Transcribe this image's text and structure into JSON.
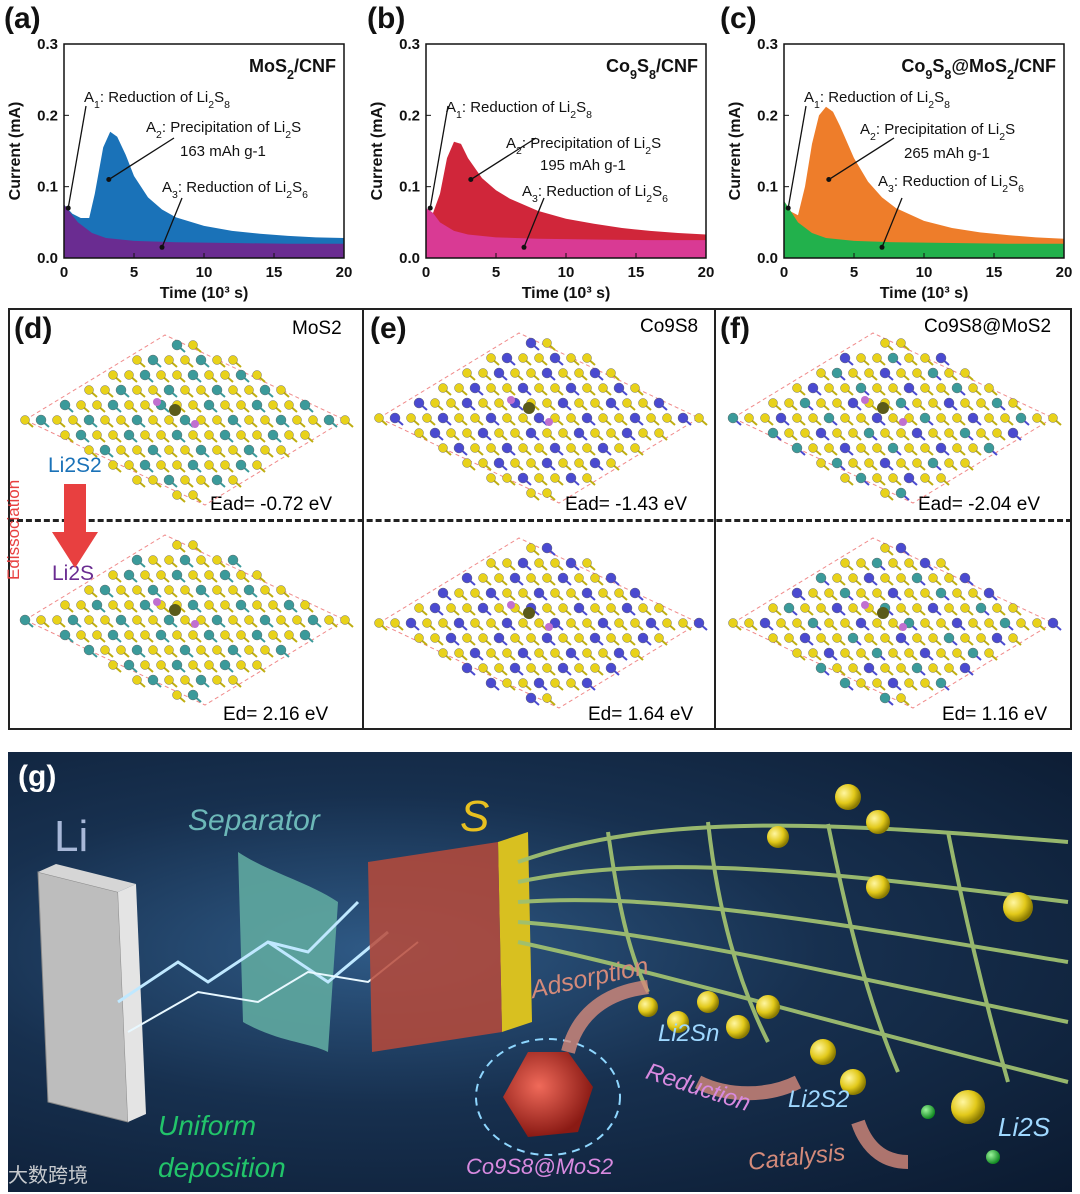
{
  "panel_labels": {
    "a": "(a)",
    "b": "(b)",
    "c": "(c)",
    "d": "(d)",
    "e": "(e)",
    "f": "(f)",
    "g": "(g)"
  },
  "chart_data": [
    {
      "type": "area",
      "panel": "(a)",
      "title": "MoS2/CNF",
      "xlabel": "Time (10³ s)",
      "ylabel": "Current (mA)",
      "xlim": [
        0,
        20
      ],
      "ylim": [
        0,
        0.3
      ],
      "xticks": [
        0,
        5,
        10,
        15,
        20
      ],
      "yticks": [
        0.0,
        0.1,
        0.2,
        0.3
      ],
      "series": [
        {
          "x": [
            0,
            0.6,
            1.2,
            1.8,
            2.2,
            2.8,
            3.3,
            3.8,
            4.4,
            5,
            6,
            7,
            8,
            10,
            12,
            14,
            16,
            18,
            20
          ],
          "y": [
            0.075,
            0.062,
            0.056,
            0.056,
            0.09,
            0.155,
            0.177,
            0.17,
            0.145,
            0.115,
            0.085,
            0.068,
            0.057,
            0.045,
            0.038,
            0.034,
            0.031,
            0.029,
            0.028
          ],
          "color": "#1a72b8"
        },
        {
          "x": [
            0,
            0.5,
            1,
            2,
            3,
            5,
            8,
            12,
            16,
            20
          ],
          "y": [
            0.075,
            0.062,
            0.05,
            0.035,
            0.028,
            0.024,
            0.022,
            0.021,
            0.02,
            0.02
          ],
          "color": "#6a2c91"
        }
      ],
      "annotations": [
        {
          "label": "A1: Reduction of Li2S8"
        },
        {
          "label": "A2: Precipitation of Li2S"
        },
        {
          "label": "163 mAh g-1"
        },
        {
          "label": "A3: Reduction of Li2S6"
        }
      ],
      "colors": {
        "main": "#1a72b8",
        "base": "#6a2c91"
      }
    },
    {
      "type": "area",
      "panel": "(b)",
      "title": "Co9S8/CNF",
      "xlabel": "Time (10³ s)",
      "ylabel": "Current (mA)",
      "xlim": [
        0,
        20
      ],
      "ylim": [
        0,
        0.3
      ],
      "xticks": [
        0,
        5,
        10,
        15,
        20
      ],
      "yticks": [
        0.0,
        0.1,
        0.2,
        0.3
      ],
      "series": [
        {
          "x": [
            0,
            0.5,
            1,
            1.5,
            2,
            2.5,
            3,
            4,
            5,
            6,
            8,
            10,
            12,
            14,
            16,
            18,
            20
          ],
          "y": [
            0.07,
            0.063,
            0.09,
            0.14,
            0.163,
            0.16,
            0.14,
            0.112,
            0.095,
            0.083,
            0.066,
            0.055,
            0.048,
            0.042,
            0.038,
            0.035,
            0.033
          ],
          "color": "#d0263a"
        },
        {
          "x": [
            0,
            0.5,
            1,
            2,
            3,
            5,
            8,
            12,
            16,
            20
          ],
          "y": [
            0.07,
            0.063,
            0.05,
            0.038,
            0.033,
            0.029,
            0.027,
            0.026,
            0.025,
            0.025
          ],
          "color": "#d93a94"
        }
      ],
      "annotations": [
        {
          "label": "A1: Reduction of Li2S8"
        },
        {
          "label": "A2: Precipitation of Li2S"
        },
        {
          "label": "195 mAh g-1"
        },
        {
          "label": "A3: Reduction of Li2S6"
        }
      ],
      "colors": {
        "main": "#d0263a",
        "base": "#d93a94"
      }
    },
    {
      "type": "area",
      "panel": "(c)",
      "title": "Co9S8@MoS2/CNF",
      "xlabel": "Time (10³ s)",
      "ylabel": "Current (mA)",
      "xlim": [
        0,
        20
      ],
      "ylim": [
        0,
        0.3
      ],
      "xticks": [
        0,
        5,
        10,
        15,
        20
      ],
      "yticks": [
        0.0,
        0.1,
        0.2,
        0.3
      ],
      "series": [
        {
          "x": [
            0,
            0.5,
            1,
            1.5,
            2,
            2.5,
            3,
            3.5,
            4,
            5,
            6,
            7,
            8,
            10,
            12,
            14,
            16,
            18,
            20
          ],
          "y": [
            0.08,
            0.065,
            0.06,
            0.1,
            0.16,
            0.2,
            0.212,
            0.205,
            0.185,
            0.14,
            0.107,
            0.085,
            0.07,
            0.052,
            0.042,
            0.036,
            0.032,
            0.029,
            0.027
          ],
          "color": "#ee7d2a"
        },
        {
          "x": [
            0,
            0.5,
            1,
            2,
            3,
            5,
            8,
            12,
            16,
            20
          ],
          "y": [
            0.08,
            0.065,
            0.05,
            0.035,
            0.028,
            0.024,
            0.022,
            0.021,
            0.02,
            0.02
          ],
          "color": "#22b14c"
        }
      ],
      "annotations": [
        {
          "label": "A1: Reduction of Li2S8"
        },
        {
          "label": "A2: Precipitation of Li2S"
        },
        {
          "label": "265 mAh g-1"
        },
        {
          "label": "A3: Reduction of Li2S6"
        }
      ],
      "colors": {
        "main": "#ee7d2a",
        "base": "#22b14c"
      }
    }
  ],
  "dft": {
    "d": {
      "title": "MoS2",
      "ead": "Ead= -0.72 eV",
      "ed": "Ed= 2.16 eV",
      "li2s2": "Li2S2",
      "li2s": "Li2S",
      "arrow": "Edissociation"
    },
    "e": {
      "title": "Co9S8",
      "ead": "Ead= -1.43 eV",
      "ed": "Ed= 1.64 eV"
    },
    "f": {
      "title": "Co9S8@MoS2",
      "ead": "Ead= -2.04 eV",
      "ed": "Ed= 1.16 eV"
    },
    "colors": {
      "s": "#e8d21a",
      "mo": "#3b9a9a",
      "co": "#4a4ad0",
      "li": "#c070d0",
      "s_bound": "#5a5a1a"
    }
  },
  "schematic": {
    "li": "Li",
    "separator": "Separator",
    "s": "S",
    "adsorption": "Adsorption",
    "li2sn": "Li2Sn",
    "reduction": "Reduction",
    "li2s2": "Li2S2",
    "catalysis": "Catalysis",
    "li2s": "Li2S",
    "uniform": "Uniform",
    "deposition": "deposition",
    "co9s8mos2": "Co9S8@MoS2"
  },
  "watermark": "大数跨境"
}
